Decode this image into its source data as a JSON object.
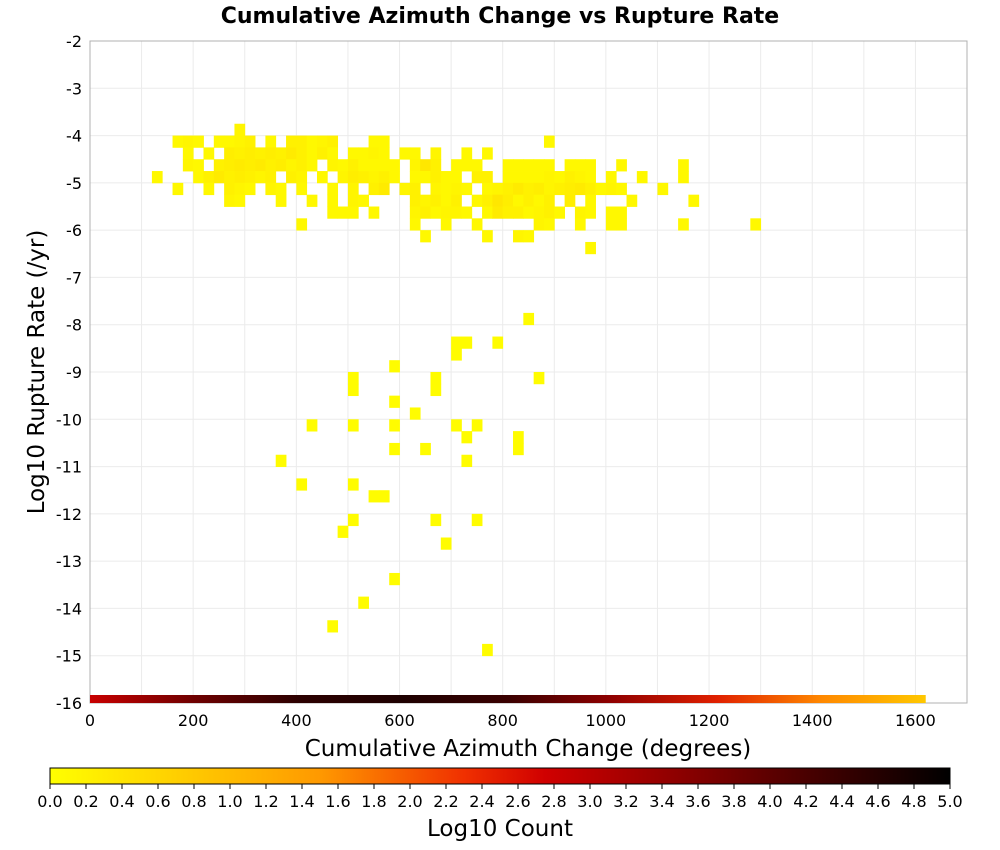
{
  "chart_data": {
    "type": "heatmap",
    "title": "Cumulative Azimuth Change vs Rupture Rate",
    "xlabel": "Cumulative Azimuth Change (degrees)",
    "ylabel": "Log10 Rupture Rate (/yr)",
    "xlim": [
      0,
      1700
    ],
    "ylim": [
      -16,
      -2
    ],
    "xticks": [
      0,
      200,
      400,
      600,
      800,
      1000,
      1200,
      1400,
      1600
    ],
    "yticks": [
      -2,
      -3,
      -4,
      -5,
      -6,
      -7,
      -8,
      -9,
      -10,
      -11,
      -12,
      -13,
      -14,
      -15,
      -16
    ],
    "grid": true,
    "bin_width": 20,
    "bin_height": 0.25,
    "colorbar": {
      "label": "Log10 Count",
      "range": [
        0,
        5
      ],
      "ticks": [
        "0.0",
        "0.2",
        "0.4",
        "0.6",
        "0.8",
        "1.0",
        "1.2",
        "1.4",
        "1.6",
        "1.8",
        "2.0",
        "2.2",
        "2.4",
        "2.6",
        "2.8",
        "3.0",
        "3.2",
        "3.4",
        "3.6",
        "3.8",
        "4.0",
        "4.2",
        "4.4",
        "4.6",
        "4.8",
        "5.0"
      ],
      "colors": [
        "#ffff00",
        "#ffd600",
        "#ff9900",
        "#f03000",
        "#d00000",
        "#8c0000",
        "#400000",
        "#000000"
      ]
    },
    "strip": {
      "description_free_value": -16,
      "x_start": 0,
      "x_end": 1620,
      "colors": [
        "#c80000",
        "#6e0000",
        "#2c0000",
        "#1e0000",
        "#3a0000",
        "#900000",
        "#e02000",
        "#ff8800",
        "#ffc800"
      ]
    },
    "cells": [
      [
        160,
        -4.25,
        0.1
      ],
      [
        180,
        -4.25,
        0.15
      ],
      [
        200,
        -4.25,
        0.1
      ],
      [
        240,
        -4.25,
        0.1
      ],
      [
        260,
        -4.25,
        0.1
      ],
      [
        280,
        -4.25,
        0.15
      ],
      [
        300,
        -4.25,
        0.2
      ],
      [
        340,
        -4.25,
        0.1
      ],
      [
        380,
        -4.25,
        0.2
      ],
      [
        400,
        -4.25,
        0.2
      ],
      [
        420,
        -4.25,
        0.1
      ],
      [
        440,
        -4.25,
        0.15
      ],
      [
        460,
        -4.25,
        0.2
      ],
      [
        540,
        -4.25,
        0.1
      ],
      [
        560,
        -4.25,
        0.1
      ],
      [
        880,
        -4.25,
        0.1
      ],
      [
        280,
        -4.0,
        0.15
      ],
      [
        180,
        -4.5,
        0.1
      ],
      [
        220,
        -4.5,
        0.1
      ],
      [
        260,
        -4.5,
        0.25
      ],
      [
        280,
        -4.5,
        0.2
      ],
      [
        300,
        -4.5,
        0.25
      ],
      [
        320,
        -4.5,
        0.2
      ],
      [
        340,
        -4.5,
        0.25
      ],
      [
        360,
        -4.5,
        0.2
      ],
      [
        380,
        -4.5,
        0.3
      ],
      [
        400,
        -4.5,
        0.2
      ],
      [
        420,
        -4.5,
        0.1
      ],
      [
        440,
        -4.5,
        0.2
      ],
      [
        460,
        -4.5,
        0.1
      ],
      [
        500,
        -4.5,
        0.1
      ],
      [
        520,
        -4.5,
        0.1
      ],
      [
        540,
        -4.5,
        0.15
      ],
      [
        560,
        -4.5,
        0.1
      ],
      [
        600,
        -4.5,
        0.1
      ],
      [
        620,
        -4.5,
        0.1
      ],
      [
        660,
        -4.5,
        0.15
      ],
      [
        720,
        -4.5,
        0.1
      ],
      [
        760,
        -4.5,
        0.1
      ],
      [
        180,
        -4.75,
        0.15
      ],
      [
        200,
        -4.75,
        0.1
      ],
      [
        240,
        -4.75,
        0.2
      ],
      [
        260,
        -4.75,
        0.25
      ],
      [
        280,
        -4.75,
        0.3
      ],
      [
        300,
        -4.75,
        0.25
      ],
      [
        320,
        -4.75,
        0.3
      ],
      [
        340,
        -4.75,
        0.2
      ],
      [
        360,
        -4.75,
        0.25
      ],
      [
        380,
        -4.75,
        0.15
      ],
      [
        400,
        -4.75,
        0.2
      ],
      [
        420,
        -4.75,
        0.1
      ],
      [
        460,
        -4.75,
        0.15
      ],
      [
        480,
        -4.75,
        0.1
      ],
      [
        500,
        -4.75,
        0.2
      ],
      [
        520,
        -4.75,
        0.1
      ],
      [
        540,
        -4.75,
        0.1
      ],
      [
        560,
        -4.75,
        0.1
      ],
      [
        580,
        -4.75,
        0.1
      ],
      [
        620,
        -4.75,
        0.15
      ],
      [
        640,
        -4.75,
        0.35
      ],
      [
        660,
        -4.75,
        0.2
      ],
      [
        700,
        -4.75,
        0.1
      ],
      [
        720,
        -4.75,
        0.1
      ],
      [
        740,
        -4.75,
        0.1
      ],
      [
        800,
        -4.75,
        0.1
      ],
      [
        820,
        -4.75,
        0.1
      ],
      [
        840,
        -4.75,
        0.1
      ],
      [
        860,
        -4.75,
        0.1
      ],
      [
        880,
        -4.75,
        0.1
      ],
      [
        920,
        -4.75,
        0.1
      ],
      [
        940,
        -4.75,
        0.1
      ],
      [
        960,
        -4.75,
        0.1
      ],
      [
        1020,
        -4.75,
        0.1
      ],
      [
        1140,
        -4.75,
        0.1
      ],
      [
        120,
        -5.0,
        0.1
      ],
      [
        200,
        -5.0,
        0.1
      ],
      [
        220,
        -5.0,
        0.2
      ],
      [
        240,
        -5.0,
        0.3
      ],
      [
        260,
        -5.0,
        0.2
      ],
      [
        280,
        -5.0,
        0.25
      ],
      [
        300,
        -5.0,
        0.2
      ],
      [
        320,
        -5.0,
        0.15
      ],
      [
        340,
        -5.0,
        0.2
      ],
      [
        380,
        -5.0,
        0.2
      ],
      [
        400,
        -5.0,
        0.15
      ],
      [
        440,
        -5.0,
        0.1
      ],
      [
        480,
        -5.0,
        0.15
      ],
      [
        500,
        -5.0,
        0.25
      ],
      [
        520,
        -5.0,
        0.2
      ],
      [
        540,
        -5.0,
        0.15
      ],
      [
        560,
        -5.0,
        0.2
      ],
      [
        580,
        -5.0,
        0.1
      ],
      [
        620,
        -5.0,
        0.1
      ],
      [
        640,
        -5.0,
        0.1
      ],
      [
        660,
        -5.0,
        0.2
      ],
      [
        680,
        -5.0,
        0.1
      ],
      [
        700,
        -5.0,
        0.1
      ],
      [
        740,
        -5.0,
        0.2
      ],
      [
        760,
        -5.0,
        0.2
      ],
      [
        800,
        -5.0,
        0.1
      ],
      [
        820,
        -5.0,
        0.1
      ],
      [
        840,
        -5.0,
        0.1
      ],
      [
        860,
        -5.0,
        0.1
      ],
      [
        880,
        -5.0,
        0.15
      ],
      [
        900,
        -5.0,
        0.1
      ],
      [
        920,
        -5.0,
        0.2
      ],
      [
        940,
        -5.0,
        0.15
      ],
      [
        960,
        -5.0,
        0.1
      ],
      [
        1000,
        -5.0,
        0.1
      ],
      [
        1060,
        -5.0,
        0.1
      ],
      [
        1140,
        -5.0,
        0.1
      ],
      [
        160,
        -5.25,
        0.1
      ],
      [
        220,
        -5.25,
        0.1
      ],
      [
        260,
        -5.25,
        0.2
      ],
      [
        280,
        -5.25,
        0.15
      ],
      [
        300,
        -5.25,
        0.1
      ],
      [
        340,
        -5.25,
        0.15
      ],
      [
        360,
        -5.25,
        0.1
      ],
      [
        400,
        -5.25,
        0.1
      ],
      [
        460,
        -5.25,
        0.1
      ],
      [
        500,
        -5.25,
        0.15
      ],
      [
        540,
        -5.25,
        0.2
      ],
      [
        560,
        -5.25,
        0.3
      ],
      [
        600,
        -5.25,
        0.15
      ],
      [
        620,
        -5.25,
        0.2
      ],
      [
        660,
        -5.25,
        0.15
      ],
      [
        680,
        -5.25,
        0.1
      ],
      [
        700,
        -5.25,
        0.15
      ],
      [
        720,
        -5.25,
        0.1
      ],
      [
        760,
        -5.25,
        0.1
      ],
      [
        780,
        -5.25,
        0.15
      ],
      [
        800,
        -5.25,
        0.2
      ],
      [
        820,
        -5.25,
        0.3
      ],
      [
        840,
        -5.25,
        0.2
      ],
      [
        860,
        -5.25,
        0.25
      ],
      [
        880,
        -5.25,
        0.15
      ],
      [
        900,
        -5.25,
        0.2
      ],
      [
        920,
        -5.25,
        0.25
      ],
      [
        940,
        -5.25,
        0.3
      ],
      [
        960,
        -5.25,
        0.2
      ],
      [
        980,
        -5.25,
        0.1
      ],
      [
        1000,
        -5.25,
        0.15
      ],
      [
        1020,
        -5.25,
        0.1
      ],
      [
        1100,
        -5.25,
        0.1
      ],
      [
        260,
        -5.5,
        0.15
      ],
      [
        280,
        -5.5,
        0.1
      ],
      [
        360,
        -5.5,
        0.1
      ],
      [
        420,
        -5.5,
        0.1
      ],
      [
        460,
        -5.5,
        0.1
      ],
      [
        500,
        -5.5,
        0.15
      ],
      [
        520,
        -5.5,
        0.1
      ],
      [
        620,
        -5.5,
        0.2
      ],
      [
        640,
        -5.5,
        0.15
      ],
      [
        660,
        -5.5,
        0.2
      ],
      [
        680,
        -5.5,
        0.1
      ],
      [
        700,
        -5.5,
        0.2
      ],
      [
        740,
        -5.5,
        0.1
      ],
      [
        760,
        -5.5,
        0.2
      ],
      [
        780,
        -5.5,
        0.35
      ],
      [
        800,
        -5.5,
        0.25
      ],
      [
        820,
        -5.5,
        0.1
      ],
      [
        840,
        -5.5,
        0.2
      ],
      [
        860,
        -5.5,
        0.1
      ],
      [
        880,
        -5.5,
        0.2
      ],
      [
        920,
        -5.5,
        0.25
      ],
      [
        960,
        -5.5,
        0.1
      ],
      [
        1040,
        -5.5,
        0.1
      ],
      [
        1160,
        -5.5,
        0.1
      ],
      [
        460,
        -5.75,
        0.1
      ],
      [
        480,
        -5.75,
        0.1
      ],
      [
        500,
        -5.75,
        0.1
      ],
      [
        540,
        -5.75,
        0.1
      ],
      [
        620,
        -5.75,
        0.15
      ],
      [
        640,
        -5.75,
        0.2
      ],
      [
        660,
        -5.75,
        0.1
      ],
      [
        680,
        -5.75,
        0.15
      ],
      [
        700,
        -5.75,
        0.15
      ],
      [
        720,
        -5.75,
        0.1
      ],
      [
        760,
        -5.75,
        0.1
      ],
      [
        780,
        -5.75,
        0.3
      ],
      [
        800,
        -5.75,
        0.2
      ],
      [
        820,
        -5.75,
        0.2
      ],
      [
        840,
        -5.75,
        0.1
      ],
      [
        860,
        -5.75,
        0.15
      ],
      [
        880,
        -5.75,
        0.2
      ],
      [
        900,
        -5.75,
        0.1
      ],
      [
        940,
        -5.75,
        0.15
      ],
      [
        960,
        -5.75,
        0.1
      ],
      [
        1000,
        -5.75,
        0.1
      ],
      [
        1020,
        -5.75,
        0.1
      ],
      [
        400,
        -6.0,
        0.1
      ],
      [
        620,
        -6.0,
        0.1
      ],
      [
        680,
        -6.0,
        0.1
      ],
      [
        740,
        -6.0,
        0.1
      ],
      [
        860,
        -6.0,
        0.15
      ],
      [
        880,
        -6.0,
        0.1
      ],
      [
        940,
        -6.0,
        0.1
      ],
      [
        1000,
        -6.0,
        0.1
      ],
      [
        1020,
        -6.0,
        0.1
      ],
      [
        1140,
        -6.0,
        0.1
      ],
      [
        1280,
        -6.0,
        0.1
      ],
      [
        640,
        -6.25,
        0.1
      ],
      [
        760,
        -6.25,
        0.1
      ],
      [
        820,
        -6.25,
        0.15
      ],
      [
        840,
        -6.25,
        0.1
      ],
      [
        960,
        -6.5,
        0.1
      ],
      [
        840,
        -8.0,
        0.05
      ],
      [
        700,
        -8.5,
        0.05
      ],
      [
        720,
        -8.5,
        0.05
      ],
      [
        780,
        -8.5,
        0.05
      ],
      [
        700,
        -8.75,
        0.05
      ],
      [
        580,
        -9.0,
        0.05
      ],
      [
        860,
        -9.25,
        0.05
      ],
      [
        500,
        -9.25,
        0.05
      ],
      [
        660,
        -9.25,
        0.05
      ],
      [
        500,
        -9.5,
        0.05
      ],
      [
        660,
        -9.5,
        0.05
      ],
      [
        580,
        -9.75,
        0.05
      ],
      [
        620,
        -10.0,
        0.05
      ],
      [
        420,
        -10.25,
        0.05
      ],
      [
        500,
        -10.25,
        0.05
      ],
      [
        580,
        -10.25,
        0.05
      ],
      [
        700,
        -10.25,
        0.05
      ],
      [
        740,
        -10.25,
        0.05
      ],
      [
        720,
        -10.5,
        0.05
      ],
      [
        820,
        -10.5,
        0.05
      ],
      [
        580,
        -10.75,
        0.05
      ],
      [
        640,
        -10.75,
        0.05
      ],
      [
        820,
        -10.75,
        0.05
      ],
      [
        360,
        -11.0,
        0.05
      ],
      [
        720,
        -11.0,
        0.05
      ],
      [
        400,
        -11.5,
        0.05
      ],
      [
        500,
        -11.5,
        0.05
      ],
      [
        540,
        -11.75,
        0.05
      ],
      [
        560,
        -11.75,
        0.05
      ],
      [
        500,
        -12.25,
        0.05
      ],
      [
        660,
        -12.25,
        0.05
      ],
      [
        740,
        -12.25,
        0.05
      ],
      [
        480,
        -12.5,
        0.05
      ],
      [
        680,
        -12.75,
        0.05
      ],
      [
        580,
        -13.5,
        0.05
      ],
      [
        520,
        -14.0,
        0.05
      ],
      [
        460,
        -14.5,
        0.05
      ],
      [
        760,
        -15.0,
        0.05
      ]
    ]
  }
}
